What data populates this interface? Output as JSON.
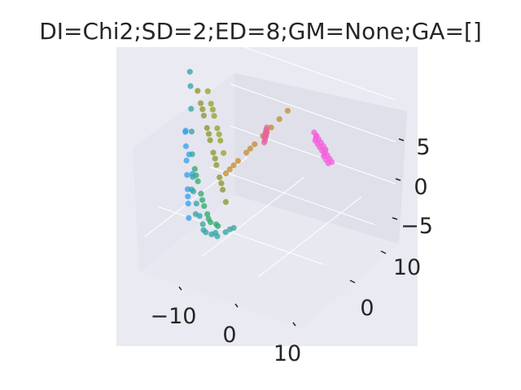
{
  "chart_data": {
    "type": "scatter",
    "projection": "3d",
    "title": "DI=Chi2;SD=2;ED=8;GM=None;GA=[]",
    "xlabel": "",
    "ylabel": "",
    "zlabel": "",
    "x_ticks": [
      "−10",
      "0",
      "10"
    ],
    "y_ticks": [
      "0",
      "10"
    ],
    "z_ticks": [
      "−5",
      "0",
      "5"
    ],
    "xlim": [
      -16,
      13
    ],
    "ylim": [
      -6,
      14
    ],
    "zlim": [
      -8,
      8
    ],
    "grid": true,
    "legend": "none",
    "style": {
      "pane_color": "#eaeaf2",
      "grid_color": "#ffffff",
      "text_color": "#262626"
    },
    "point_colors": [
      "#f461dd",
      "#e5669b",
      "#3ba3ec",
      "#39a7a8",
      "#36ad73",
      "#8e9a31",
      "#c69035",
      "#97a531"
    ],
    "series": [
      {
        "x": [
          -12,
          -11,
          -10,
          -9.5,
          -9,
          -8.5,
          -8,
          -7,
          -6.5,
          -6,
          -12.5,
          -12,
          -11.5,
          -11,
          -10.5,
          -10,
          -9,
          -8.5,
          -8,
          -7.5
        ],
        "y": [
          3,
          4,
          5,
          6,
          7,
          8,
          9,
          10,
          11,
          12,
          2,
          3,
          4,
          5,
          6,
          7,
          8,
          9,
          10,
          11
        ],
        "z": [
          5,
          4,
          3,
          2,
          1,
          0,
          -1,
          -2,
          -3,
          -4,
          6,
          5,
          4,
          3,
          2,
          1,
          0,
          -1,
          -2,
          -3
        ]
      },
      {
        "x": [
          -6,
          -5,
          -4,
          -3,
          -2,
          -5.5,
          -4.5,
          -3.5,
          -2.5,
          -1.5
        ],
        "y": [
          0,
          1,
          2,
          3,
          4,
          0.5,
          1.5,
          2.5,
          3.5,
          4.5
        ],
        "z": [
          6,
          5,
          4,
          3,
          2,
          5,
          4,
          3,
          2,
          1
        ]
      },
      {
        "x": [
          6,
          7,
          8,
          9,
          10,
          11,
          5,
          6.5,
          7.5,
          9,
          10.5
        ],
        "y": [
          -2,
          -1,
          0,
          1,
          2,
          3,
          -3,
          -1.5,
          0.5,
          1.5,
          2.5
        ],
        "z": [
          -5,
          -4,
          -3,
          -2,
          -1,
          0,
          -6,
          -4.5,
          -3,
          -1.5,
          0.5
        ]
      },
      {
        "x": [
          -2,
          -1,
          0,
          1,
          2,
          3,
          4,
          5,
          6,
          7,
          8,
          9,
          10,
          11,
          12,
          -1.5,
          0.5,
          2.5,
          4.5,
          6.5
        ],
        "y": [
          -2,
          -2.5,
          -3,
          -3,
          -3,
          -2.5,
          -2,
          -1.5,
          -1,
          0,
          1,
          2,
          3,
          4,
          5,
          -2.2,
          -2.8,
          -2.9,
          -2.2,
          -0.8
        ],
        "z": [
          -6,
          -6.5,
          -7,
          -7,
          -7,
          -6.5,
          -6,
          -5,
          -4,
          -3,
          -1,
          1,
          3,
          5,
          6,
          -6.2,
          -6.8,
          -6.9,
          -5.8,
          -4
        ]
      },
      {
        "x": [
          2,
          3,
          4,
          5,
          6,
          7,
          8,
          1.5,
          3.5,
          5.5,
          7.5
        ],
        "y": [
          -1,
          -1,
          -0.5,
          0,
          0.5,
          1,
          1.5,
          -1.2,
          -0.8,
          0.2,
          1.2
        ],
        "z": [
          -7,
          -7,
          -6.5,
          -6,
          -5,
          -4,
          -3,
          -7,
          -6.8,
          -5.5,
          -3.5
        ]
      },
      {
        "x": [
          3,
          4,
          5,
          6,
          7,
          8,
          9,
          10,
          11,
          12,
          4.5,
          6.5,
          8.5,
          10.5
        ],
        "y": [
          2,
          2.5,
          3,
          3.5,
          4,
          4.5,
          5,
          5.5,
          6,
          6.5,
          2.8,
          3.8,
          4.8,
          5.8
        ],
        "z": [
          -6,
          -5,
          -4,
          -3,
          -2,
          -1,
          0,
          1,
          2,
          3,
          -4.5,
          -2.5,
          -0.5,
          1.5
        ]
      },
      {
        "x": [
          -1,
          0,
          1,
          2,
          3,
          4,
          5,
          -2,
          0.5,
          2.5,
          4.5,
          5.5
        ],
        "y": [
          8,
          7.5,
          7,
          6.5,
          6,
          5.5,
          5,
          8.5,
          7.2,
          6.2,
          5.2,
          4.8
        ],
        "z": [
          2,
          1,
          0,
          -1,
          -2,
          -3,
          -4,
          3,
          0.5,
          -1.5,
          -3.5,
          -4.5
        ]
      },
      {
        "x": [
          7,
          8,
          9,
          10,
          11,
          12,
          8.5,
          10.5
        ],
        "y": [
          6,
          6.5,
          7,
          7.5,
          8,
          8.5,
          6.8,
          7.8
        ],
        "z": [
          -3,
          -2,
          -1,
          0,
          1,
          2,
          -1.5,
          0.5
        ]
      }
    ]
  }
}
